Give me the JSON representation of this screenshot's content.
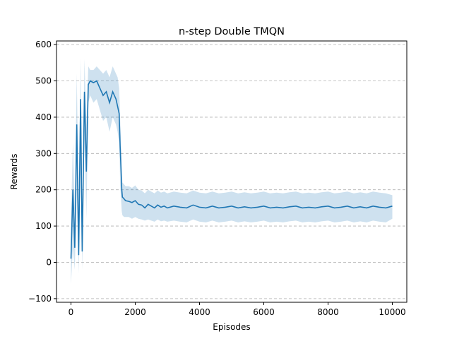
{
  "chart_data": {
    "type": "line",
    "title": "n-step Double TMQN",
    "xlabel": "Episodes",
    "ylabel": "Rewards",
    "xlim": [
      -450,
      10450
    ],
    "ylim": [
      -110,
      610
    ],
    "xticks": [
      0,
      2000,
      4000,
      6000,
      8000,
      10000
    ],
    "yticks": [
      -100,
      0,
      100,
      200,
      300,
      400,
      500,
      600
    ],
    "grid": {
      "y": true,
      "style": "dashed"
    },
    "legend": "none",
    "colors": {
      "line": "#1f77b4",
      "band": "#1f77b4",
      "grid": "#b0b0b0"
    },
    "series": [
      {
        "x": [
          0,
          60,
          120,
          180,
          240,
          300,
          350,
          420,
          480,
          540,
          600,
          700,
          800,
          900,
          1000,
          1100,
          1200,
          1300,
          1400,
          1450,
          1500,
          1530,
          1560,
          1580,
          1600,
          1650,
          1700,
          1800,
          1900,
          2000,
          2100,
          2200,
          2300,
          2400,
          2500,
          2600,
          2700,
          2800,
          2900,
          3000,
          3200,
          3400,
          3600,
          3800,
          4000,
          4200,
          4400,
          4600,
          4800,
          5000,
          5200,
          5400,
          5600,
          5800,
          6000,
          6200,
          6400,
          6600,
          6800,
          7000,
          7200,
          7400,
          7600,
          7800,
          8000,
          8200,
          8400,
          8600,
          8800,
          9000,
          9200,
          9400,
          9600,
          9800,
          10000
        ],
        "y": [
          10,
          200,
          40,
          380,
          20,
          450,
          30,
          470,
          250,
          490,
          500,
          495,
          500,
          480,
          460,
          470,
          440,
          470,
          450,
          430,
          410,
          320,
          250,
          200,
          180,
          175,
          170,
          168,
          165,
          170,
          160,
          158,
          150,
          160,
          155,
          150,
          158,
          152,
          155,
          150,
          155,
          152,
          150,
          158,
          152,
          150,
          155,
          150,
          152,
          155,
          150,
          153,
          150,
          152,
          155,
          150,
          152,
          150,
          153,
          155,
          150,
          152,
          150,
          153,
          155,
          150,
          152,
          155,
          150,
          153,
          150,
          155,
          152,
          150,
          155
        ],
        "lower": [
          -60,
          40,
          -20,
          200,
          -30,
          300,
          -20,
          360,
          120,
          440,
          460,
          440,
          450,
          420,
          390,
          400,
          360,
          400,
          380,
          360,
          330,
          220,
          170,
          140,
          130,
          125,
          125,
          125,
          120,
          125,
          120,
          118,
          115,
          118,
          115,
          112,
          118,
          113,
          115,
          112,
          115,
          112,
          110,
          118,
          112,
          110,
          115,
          110,
          112,
          115,
          110,
          113,
          110,
          112,
          115,
          110,
          112,
          110,
          113,
          115,
          110,
          112,
          110,
          113,
          115,
          110,
          112,
          115,
          110,
          113,
          110,
          115,
          112,
          110,
          120
        ],
        "upper": [
          120,
          330,
          150,
          520,
          140,
          560,
          130,
          560,
          380,
          540,
          530,
          530,
          540,
          530,
          520,
          530,
          510,
          540,
          520,
          510,
          480,
          400,
          320,
          250,
          220,
          215,
          210,
          210,
          205,
          212,
          200,
          198,
          190,
          200,
          195,
          190,
          198,
          192,
          195,
          190,
          195,
          192,
          190,
          198,
          192,
          190,
          195,
          190,
          192,
          195,
          190,
          193,
          190,
          192,
          195,
          190,
          192,
          190,
          193,
          195,
          190,
          192,
          190,
          193,
          195,
          190,
          192,
          195,
          190,
          193,
          190,
          195,
          192,
          190,
          185
        ]
      }
    ]
  }
}
